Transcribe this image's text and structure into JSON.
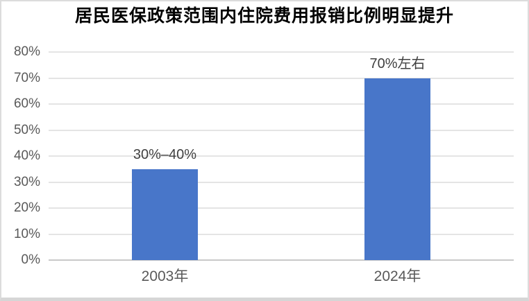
{
  "page": {
    "background": "#ffffff",
    "frame_border_color": "#dcdcdc"
  },
  "chart_data": {
    "type": "bar",
    "title": "居民医保政策范围内住院费用报销比例明显提升",
    "categories": [
      "2003年",
      "2024年"
    ],
    "values": [
      35,
      70
    ],
    "value_labels": [
      "30%–40%",
      "70%左右"
    ],
    "ylim": [
      0,
      80
    ],
    "ytick_step": 10,
    "ytick_labels": [
      "0%",
      "10%",
      "20%",
      "30%",
      "40%",
      "50%",
      "60%",
      "70%",
      "80%"
    ],
    "grid": true,
    "legend": "none",
    "bar_color": "#4876c9",
    "grid_color": "#e4e4e4",
    "zero_line_color": "#c9c9c9",
    "axis_label_color": "#595959",
    "data_label_color": "#3f3f3f",
    "title_color": "#000000"
  }
}
